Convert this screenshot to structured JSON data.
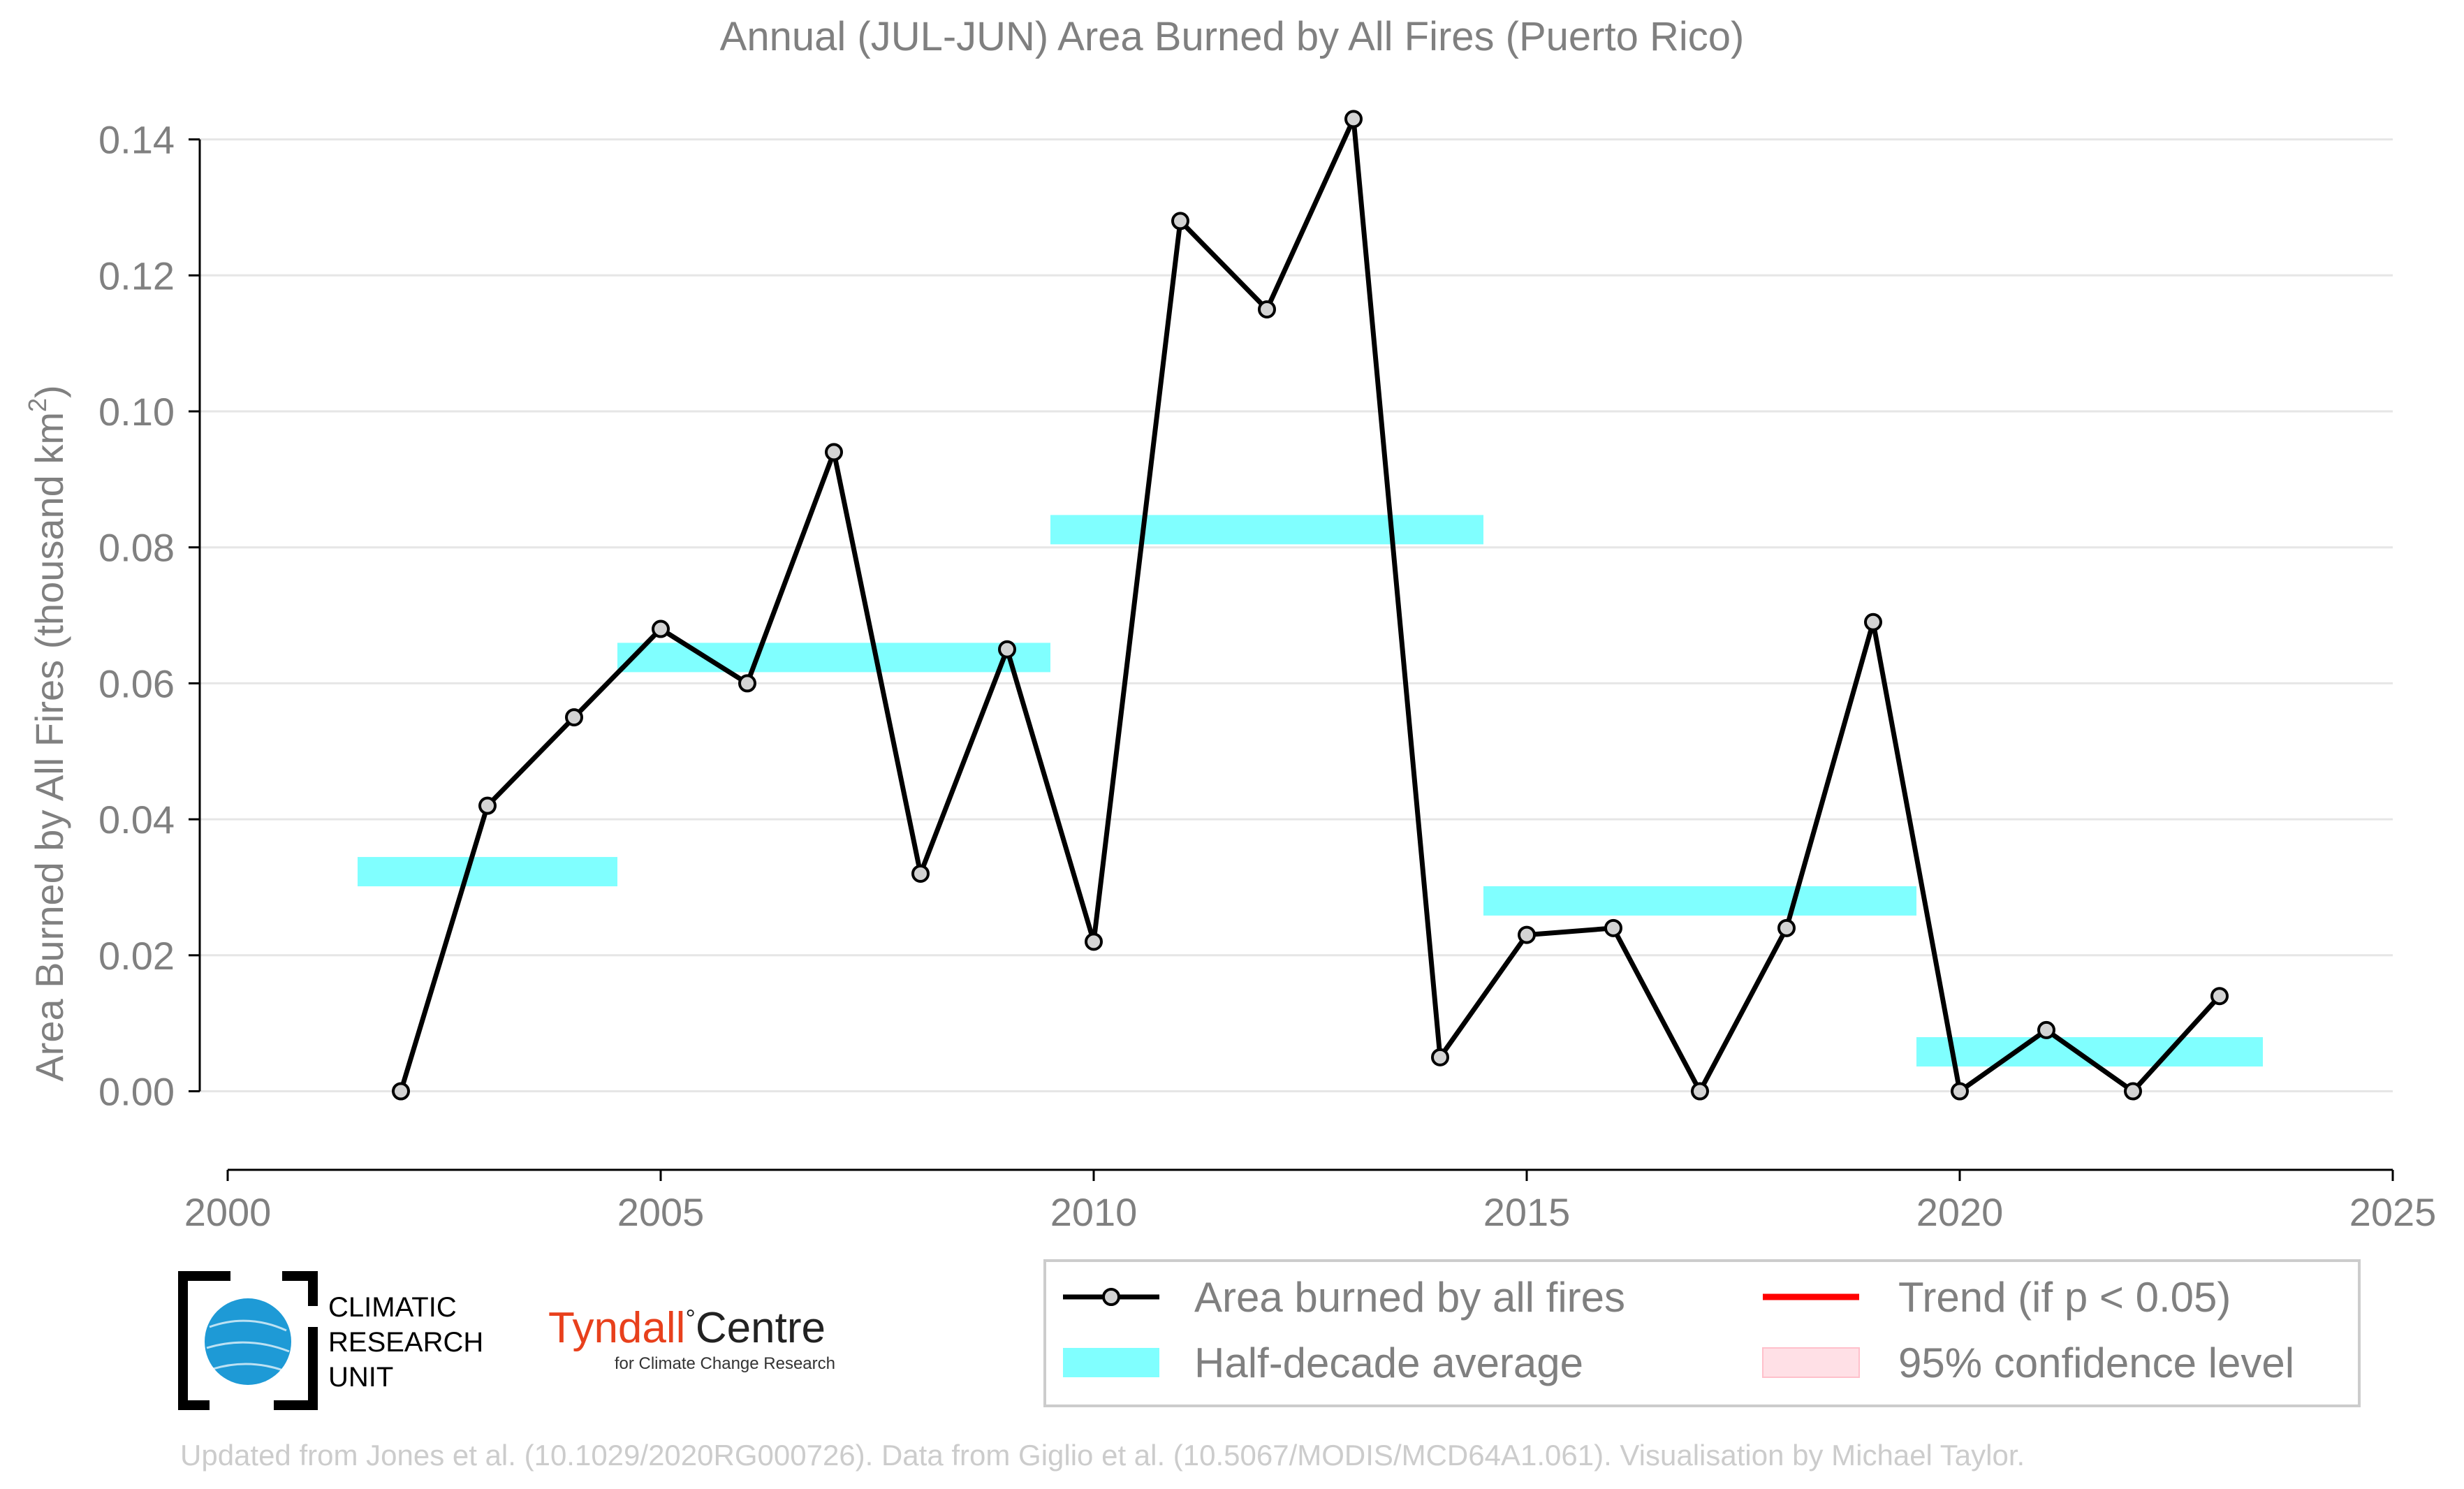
{
  "chart_data": {
    "type": "line",
    "title": "Annual (JUL-JUN) Area Burned by All Fires (Puerto Rico)",
    "ylabel": "Area Burned by All Fires (thousand km",
    "ylabel_superscript": "2",
    "ylabel_close": ")",
    "xlim": [
      2000,
      2025
    ],
    "ylim": [
      -0.011,
      0.145
    ],
    "x_ticks": [
      2000,
      2005,
      2010,
      2015,
      2020,
      2025
    ],
    "y_ticks": [
      0.0,
      0.02,
      0.04,
      0.06,
      0.08,
      0.1,
      0.12,
      0.14
    ],
    "grid": "horizontal",
    "series": [
      {
        "name": "Area burned by all fires",
        "color": "#000000",
        "marker_fill": "#d3d3d3",
        "x": [
          2002,
          2003,
          2004,
          2005,
          2006,
          2007,
          2008,
          2009,
          2010,
          2011,
          2012,
          2013,
          2014,
          2015,
          2016,
          2017,
          2018,
          2019,
          2020,
          2021,
          2022,
          2023
        ],
        "y": [
          0.0,
          0.042,
          0.055,
          0.068,
          0.06,
          0.094,
          0.032,
          0.065,
          0.022,
          0.128,
          0.115,
          0.143,
          0.005,
          0.023,
          0.024,
          0.0,
          0.024,
          0.069,
          0.0,
          0.009,
          0.0,
          0.014
        ]
      }
    ],
    "half_decade_average": {
      "name": "Half-decade average",
      "color": "#80ffff",
      "segments": [
        {
          "x0": 2001.5,
          "x1": 2004.5,
          "y": 0.0323
        },
        {
          "x0": 2004.5,
          "x1": 2009.5,
          "y": 0.0638
        },
        {
          "x0": 2009.5,
          "x1": 2014.5,
          "y": 0.0826
        },
        {
          "x0": 2014.5,
          "x1": 2019.5,
          "y": 0.028
        },
        {
          "x0": 2019.5,
          "x1": 2023.5,
          "y": 0.0058
        }
      ]
    },
    "legend": {
      "placement": "bottom-right",
      "entries": [
        {
          "label": "Area burned by all fires",
          "kind": "line-marker",
          "color": "#000000"
        },
        {
          "label": "Trend (if p < 0.05)",
          "kind": "line",
          "color": "#ff0000"
        },
        {
          "label": "Half-decade average",
          "kind": "band",
          "color": "#80ffff"
        },
        {
          "label": "95% confidence level",
          "kind": "band",
          "color": "#ffe0e6"
        }
      ]
    }
  },
  "logos": {
    "cru": [
      "CLIMATIC",
      "RESEARCH",
      "UNIT"
    ],
    "tyndall_name": "Tyndall",
    "tyndall_degree": "°",
    "tyndall_centre": "Centre",
    "tyndall_sub": "for Climate Change Research"
  },
  "footer": "Updated from Jones et al. (10.1029/2020RG000726). Data from Giglio et al. (10.5067/MODIS/MCD64A1.061). Visualisation by Michael Taylor."
}
